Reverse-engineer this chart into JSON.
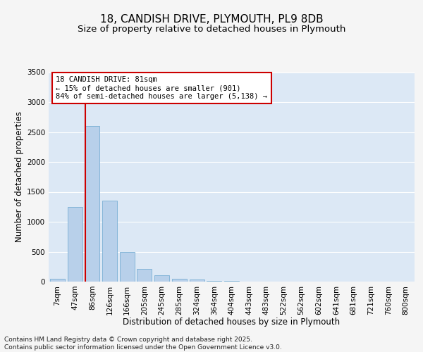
{
  "title_line1": "18, CANDISH DRIVE, PLYMOUTH, PL9 8DB",
  "title_line2": "Size of property relative to detached houses in Plymouth",
  "xlabel": "Distribution of detached houses by size in Plymouth",
  "ylabel": "Number of detached properties",
  "categories": [
    "7sqm",
    "47sqm",
    "86sqm",
    "126sqm",
    "166sqm",
    "205sqm",
    "245sqm",
    "285sqm",
    "324sqm",
    "364sqm",
    "404sqm",
    "443sqm",
    "483sqm",
    "522sqm",
    "562sqm",
    "602sqm",
    "641sqm",
    "681sqm",
    "721sqm",
    "760sqm",
    "800sqm"
  ],
  "values": [
    50,
    1250,
    2600,
    1350,
    500,
    210,
    110,
    50,
    30,
    15,
    8,
    3,
    2,
    1,
    0,
    0,
    0,
    0,
    0,
    0,
    0
  ],
  "bar_color": "#b8d0ea",
  "bar_edge_color": "#7aafd4",
  "vline_color": "#cc0000",
  "annotation_text": "18 CANDISH DRIVE: 81sqm\n← 15% of detached houses are smaller (901)\n84% of semi-detached houses are larger (5,138) →",
  "annotation_box_facecolor": "#ffffff",
  "annotation_box_edgecolor": "#cc0000",
  "ylim": [
    0,
    3500
  ],
  "yticks": [
    0,
    500,
    1000,
    1500,
    2000,
    2500,
    3000,
    3500
  ],
  "background_color": "#dce8f5",
  "grid_color": "#ffffff",
  "fig_facecolor": "#f5f5f5",
  "footer_text": "Contains HM Land Registry data © Crown copyright and database right 2025.\nContains public sector information licensed under the Open Government Licence v3.0.",
  "title_fontsize": 11,
  "subtitle_fontsize": 9.5,
  "axis_label_fontsize": 8.5,
  "tick_fontsize": 7.5,
  "annotation_fontsize": 7.5,
  "footer_fontsize": 6.5
}
